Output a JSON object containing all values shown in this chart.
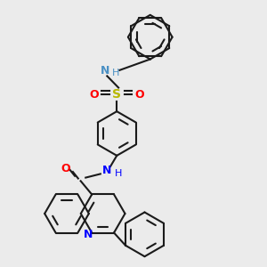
{
  "background_color": "#ebebeb",
  "bg_rgb": [
    0.922,
    0.922,
    0.922
  ],
  "bond_color": "#1a1a1a",
  "lw": 1.5,
  "r_hex": 0.28,
  "colors": {
    "N": "#4a90c4",
    "N2": "#0000ff",
    "O": "#ff0000",
    "S": "#b8b800",
    "H": "#4a90c4",
    "C": "#1a1a1a"
  },
  "xlim": [
    0.0,
    3.0
  ],
  "ylim": [
    0.0,
    3.2
  ]
}
